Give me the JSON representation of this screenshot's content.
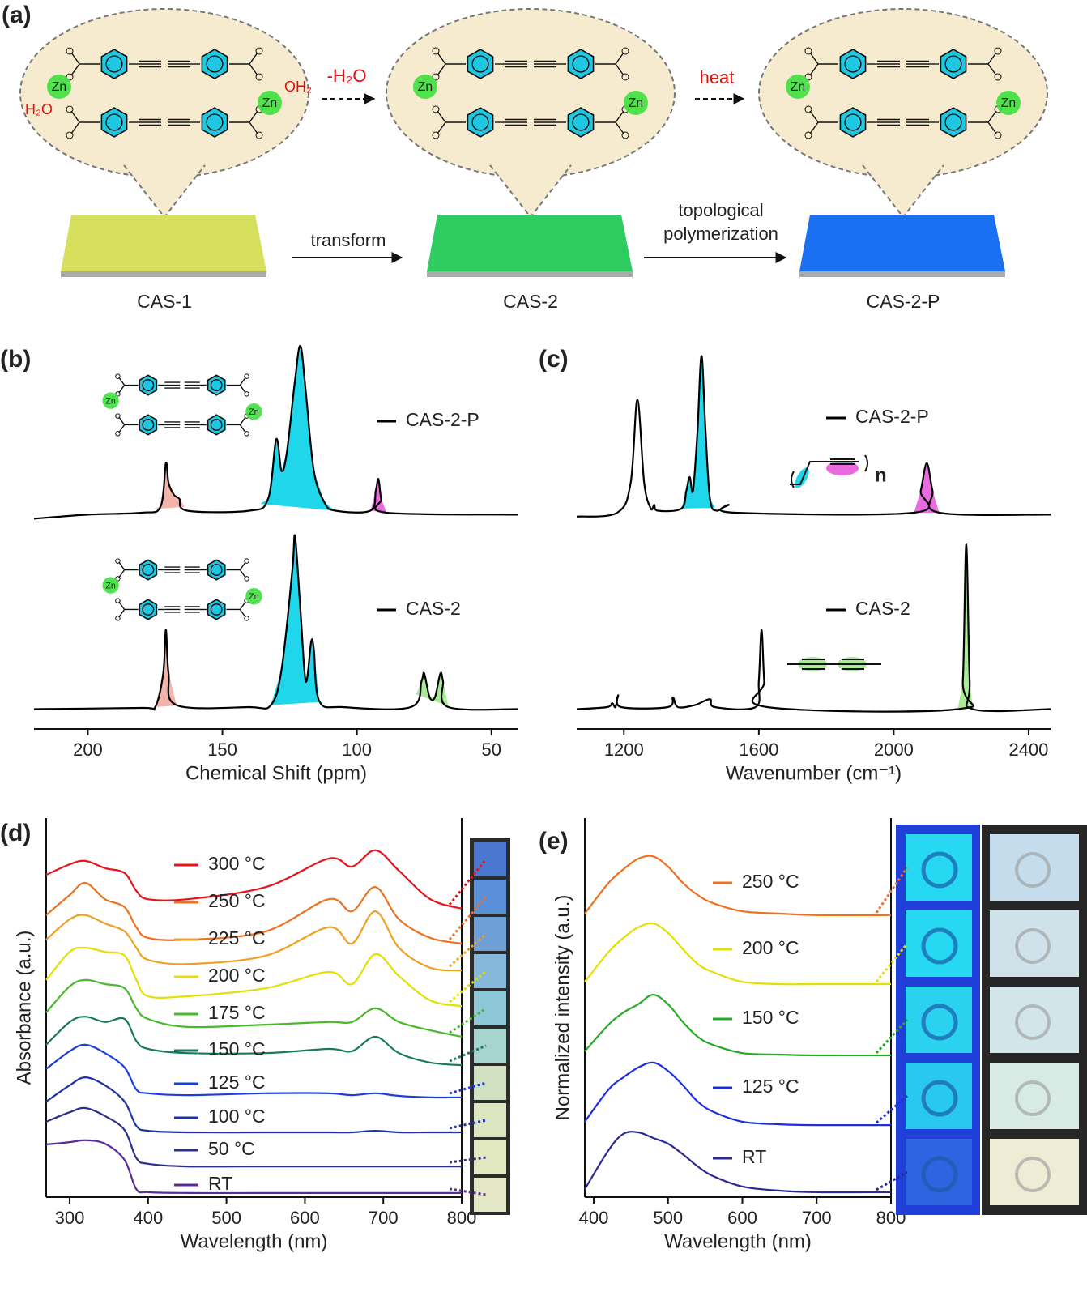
{
  "panel_a": {
    "label": "(a)",
    "materials": [
      "CAS-1",
      "CAS-2",
      "CAS-2-P"
    ],
    "transform": "transform",
    "polymerization": [
      "topological",
      "polymerization"
    ],
    "dehydration": "-H₂O",
    "heat": "heat",
    "water_left": "H₂O",
    "water_right": "OH₂",
    "zinc": "Zn"
  },
  "chart_data": [
    {
      "type": "line",
      "panel_label": "(b)",
      "x_label": "Chemical Shift (ppm)",
      "xlim": [
        220,
        40
      ],
      "xticks": [
        200,
        150,
        100,
        50
      ],
      "ylim": [
        0,
        100
      ],
      "series": [
        {
          "name": "CAS-2-P",
          "color": "#000000",
          "x": [
            220,
            200,
            180,
            173,
            171,
            170,
            168,
            166,
            163,
            140,
            133,
            130,
            128,
            126,
            123,
            121,
            119,
            116,
            112,
            108,
            95,
            93,
            92,
            91,
            89,
            40
          ],
          "values": [
            53,
            54,
            54.5,
            56,
            67,
            62,
            59,
            58,
            55,
            55,
            58,
            73,
            65,
            70,
            88,
            96.5,
            85,
            65,
            57,
            55,
            55,
            60,
            63,
            58,
            54.5,
            54
          ],
          "fills": [
            {
              "from": 176,
              "to": 164,
              "color": "#f2b3ab"
            },
            {
              "from": 136,
              "to": 108,
              "color": "#1fd6ea"
            },
            {
              "from": 95,
              "to": 89,
              "color": "#e86be0"
            }
          ]
        },
        {
          "name": "CAS-2",
          "color": "#000000",
          "x": [
            220,
            180,
            175,
            172,
            171,
            170,
            167,
            140,
            132,
            128,
            124,
            123,
            121,
            119,
            117,
            116,
            114,
            105,
            80,
            76,
            75,
            73,
            71,
            69,
            68,
            66,
            40
          ],
          "values": [
            5,
            5.3,
            5.5,
            14,
            25,
            14,
            6,
            5.5,
            6,
            15,
            40,
            48.5,
            30,
            12,
            22,
            20,
            7,
            5.5,
            5.5,
            12,
            14,
            8,
            8,
            14,
            12,
            5.5,
            5
          ],
          "fills": [
            {
              "from": 175,
              "to": 166,
              "color": "#f2b3ab"
            },
            {
              "from": 133,
              "to": 113,
              "color": "#1fd6ea"
            },
            {
              "from": 78,
              "to": 65,
              "color": "#a8ea98"
            }
          ]
        }
      ]
    },
    {
      "type": "line",
      "panel_label": "(c)",
      "x_label": "Wavenumber (cm⁻¹)",
      "annotation": "n",
      "xlim": [
        1060,
        2465
      ],
      "xticks": [
        1200,
        1600,
        2000,
        2400
      ],
      "ylim": [
        0,
        100
      ],
      "series": [
        {
          "name": "CAS-2-P",
          "color": "#000000",
          "x": [
            1060,
            1180,
            1220,
            1240,
            1260,
            1280,
            1290,
            1300,
            1370,
            1385,
            1395,
            1405,
            1418,
            1430,
            1442,
            1455,
            1475,
            1510,
            1530,
            2060,
            2080,
            2098,
            2115,
            2135,
            2465
          ],
          "values": [
            53.5,
            54.5,
            62,
            83,
            62,
            55.5,
            56.5,
            55,
            55.5,
            60,
            63.5,
            60,
            75,
            94,
            75,
            58,
            55,
            56.5,
            54.5,
            54.5,
            60,
            67,
            60,
            54.5,
            54
          ],
          "fills": [
            {
              "from": 1370,
              "to": 1470,
              "color": "#1fd6ea"
            },
            {
              "from": 2060,
              "to": 2140,
              "color": "#e86be0"
            }
          ]
        },
        {
          "name": "CAS-2",
          "color": "#000000",
          "x": [
            1060,
            1150,
            1165,
            1175,
            1183,
            1192,
            1330,
            1345,
            1360,
            1410,
            1455,
            1470,
            1590,
            1600,
            1608,
            1616,
            1625,
            2190,
            2205,
            2215,
            2225,
            2235,
            2465
          ],
          "values": [
            5,
            5.5,
            6.5,
            5.5,
            8.5,
            5.5,
            5.5,
            8,
            5.5,
            6,
            7.5,
            5.5,
            5.5,
            12,
            25,
            12,
            5.5,
            5,
            12,
            46.5,
            12,
            5,
            5
          ],
          "fills": [
            {
              "from": 2190,
              "to": 2240,
              "color": "#a8ea98"
            }
          ]
        }
      ]
    },
    {
      "type": "line",
      "panel_label": "(d)",
      "x_label": "Wavelength (nm)",
      "y_label": "Absorbance (a.u.)",
      "left_axis": true,
      "xlim": [
        270,
        800
      ],
      "xticks": [
        300,
        400,
        500,
        600,
        700,
        800
      ],
      "ylim": [
        0,
        100
      ],
      "x": [
        270,
        300,
        320,
        345,
        370,
        385,
        400,
        450,
        550,
        630,
        660,
        690,
        720,
        760,
        800
      ],
      "series": [
        {
          "name": "300 °C",
          "color": "#e8131a",
          "values": [
            85.0,
            87.8,
            88.7,
            86.8,
            85.5,
            80.8,
            78.6,
            78.6,
            81.8,
            89.3,
            87.2,
            91.5,
            86.1,
            78.6,
            76.1
          ]
        },
        {
          "name": "250 °C",
          "color": "#f07020",
          "values": [
            74.4,
            79.7,
            82.9,
            78.6,
            76.5,
            71.2,
            68.4,
            67.9,
            70.1,
            78.6,
            75.4,
            81.8,
            73.3,
            68.4,
            66.9
          ]
        },
        {
          "name": "225 °C",
          "color": "#f0a020",
          "values": [
            67.9,
            73.3,
            74.4,
            72.2,
            70.1,
            65.8,
            62.6,
            61.5,
            63.7,
            71.2,
            66.9,
            75.4,
            65.8,
            60.5,
            59.8
          ]
        },
        {
          "name": "200 °C",
          "color": "#e2e000",
          "values": [
            57.3,
            64.7,
            65.8,
            64.7,
            63.7,
            57.3,
            53.0,
            53.0,
            55.1,
            59.4,
            56.2,
            64.1,
            58.3,
            51.9,
            50.4
          ]
        },
        {
          "name": "175 °C",
          "color": "#49b82c",
          "values": [
            48.7,
            55.6,
            57.3,
            56.2,
            55.1,
            49.8,
            47.0,
            44.9,
            45.5,
            46.2,
            46.2,
            49.8,
            46.2,
            44.0,
            42.3
          ]
        },
        {
          "name": "150 °C",
          "color": "#1a7a60",
          "values": [
            40.2,
            46.2,
            47.6,
            46.2,
            47.0,
            41.2,
            39.1,
            38.0,
            38.0,
            39.1,
            38.5,
            42.3,
            38.0,
            35.5,
            34.8
          ]
        },
        {
          "name": "125 °C",
          "color": "#1a3ee0",
          "values": [
            33.8,
            38.5,
            40.2,
            38.0,
            34.2,
            28.4,
            27.4,
            26.9,
            27.4,
            27.4,
            26.9,
            27.4,
            26.7,
            26.3,
            26.3
          ]
        },
        {
          "name": "100 °C",
          "color": "#1f2fa8",
          "values": [
            25.2,
            29.5,
            31.6,
            29.5,
            25.2,
            18.8,
            17.5,
            17.1,
            17.1,
            17.1,
            17.1,
            17.5,
            17.1,
            17.1,
            17.1
          ]
        },
        {
          "name": "50 °C",
          "color": "#2b2f8a",
          "values": [
            19.9,
            22.4,
            23.5,
            21.4,
            17.7,
            10.3,
            8.8,
            8.1,
            8.1,
            8.1,
            8.1,
            8.1,
            8.1,
            8.1,
            8.1
          ]
        },
        {
          "name": "RT",
          "color": "#5b2a9a",
          "values": [
            13.9,
            14.5,
            15.0,
            14.1,
            9.8,
            2.1,
            1.3,
            1.1,
            1.1,
            1.1,
            1.1,
            1.1,
            1.1,
            1.1,
            1.1
          ]
        }
      ]
    },
    {
      "type": "line",
      "panel_label": "(e)",
      "x_label": "Wavelength (nm)",
      "y_label": "Normalized intensity (a.u.)",
      "left_axis": true,
      "xlim": [
        388,
        800
      ],
      "xticks": [
        400,
        500,
        600,
        700,
        800
      ],
      "ylim": [
        0,
        100
      ],
      "x": [
        388,
        420,
        440,
        460,
        480,
        500,
        520,
        540,
        560,
        600,
        650,
        700,
        800
      ],
      "series": [
        {
          "name": "250 °C",
          "color": "#f07020",
          "values": [
            74.8,
            82.9,
            86.5,
            89.3,
            89.9,
            87.2,
            82.9,
            79.7,
            77.6,
            75.4,
            74.8,
            74.4,
            74.4
          ]
        },
        {
          "name": "200 °C",
          "color": "#e2e000",
          "values": [
            56.8,
            64.7,
            68.4,
            71.2,
            72.2,
            69.7,
            65.4,
            61.5,
            59.4,
            56.8,
            56.2,
            56.2,
            56.2
          ]
        },
        {
          "name": "150 °C",
          "color": "#2aa82a",
          "values": [
            38.5,
            45.5,
            48.7,
            50.9,
            53.4,
            50.9,
            46.2,
            42.3,
            40.2,
            38.0,
            37.6,
            37.4,
            37.4
          ]
        },
        {
          "name": "125 °C",
          "color": "#1c2fe0",
          "values": [
            19.9,
            28.4,
            31.6,
            34.2,
            35.5,
            33.3,
            29.5,
            25.2,
            22.6,
            19.9,
            19.2,
            19.0,
            19.0
          ]
        },
        {
          "name": "RT",
          "color": "#2b2a90",
          "values": [
            2.1,
            12.4,
            16.7,
            17.1,
            15.6,
            14.1,
            11.3,
            8.1,
            5.6,
            2.8,
            1.7,
            1.3,
            1.3
          ]
        }
      ]
    }
  ]
}
